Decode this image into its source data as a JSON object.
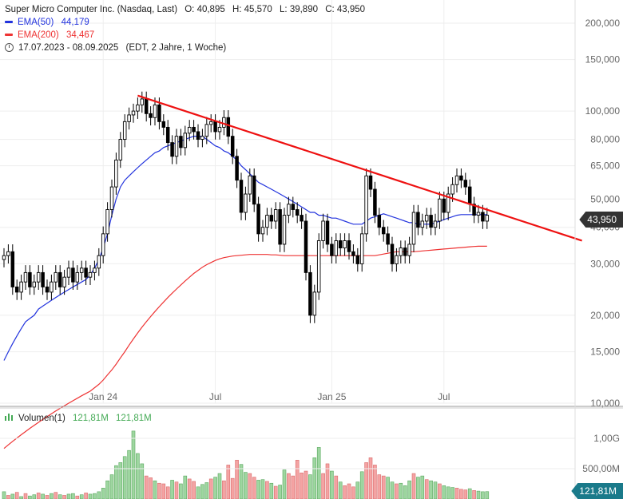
{
  "header": {
    "title_line": "Super Micro Computer Inc. (Nasdaq, Last)",
    "open_label": "O: 40,895",
    "high_label": "H: 45,570",
    "low_label": "L: 39,890",
    "close_label": "C: 43,950",
    "ema50_label": "EMA(50)",
    "ema50_value": "44,179",
    "ema200_label": "EMA(200)",
    "ema200_value": "34,467",
    "range_text": "17.07.2023 - 08.09.2025",
    "range_note": "(EDT, 2 Jahre, 1 Woche)",
    "ema50_color": "#2233dd",
    "ema200_color": "#ee3333"
  },
  "price_badge": "43,950",
  "volume_header": {
    "label": "Volumen(1)",
    "value1": "121,81M",
    "value2": "121,81M",
    "color": "#44aa55"
  },
  "volume_badge": "121,81M",
  "chart_data": {
    "type": "candlestick",
    "scale": "log",
    "ylim": [
      10,
      240
    ],
    "yticks": [
      {
        "value": 200,
        "label": "200,000"
      },
      {
        "value": 150,
        "label": "150,000"
      },
      {
        "value": 100,
        "label": "100,000"
      },
      {
        "value": 80,
        "label": "80,000"
      },
      {
        "value": 65,
        "label": "65,000"
      },
      {
        "value": 50,
        "label": "50,000"
      },
      {
        "value": 40,
        "label": "40,000"
      },
      {
        "value": 30,
        "label": "30,000"
      },
      {
        "value": 20,
        "label": "20,000"
      },
      {
        "value": 15,
        "label": "15,000"
      },
      {
        "value": 10,
        "label": "10,000"
      }
    ],
    "xticks": [
      {
        "index": 23,
        "label": "Jan 24"
      },
      {
        "index": 49,
        "label": "Jul"
      },
      {
        "index": 76,
        "label": "Jan 25"
      },
      {
        "index": 102,
        "label": "Jul"
      }
    ],
    "last_close": 43.95,
    "closes": [
      32,
      33,
      25,
      24,
      26,
      28,
      25,
      26,
      28,
      25,
      24,
      26,
      28,
      25,
      27,
      29,
      26,
      28,
      29,
      27,
      28,
      29,
      32,
      38,
      46,
      55,
      68,
      80,
      92,
      97,
      100,
      105,
      110,
      98,
      95,
      105,
      92,
      88,
      78,
      70,
      82,
      75,
      84,
      88,
      85,
      80,
      82,
      90,
      92,
      85,
      88,
      95,
      82,
      70,
      58,
      45,
      52,
      60,
      48,
      38,
      40,
      44,
      42,
      46,
      35,
      44,
      48,
      46,
      44,
      42,
      28,
      20,
      24,
      36,
      42,
      35,
      32,
      36,
      34,
      36,
      33,
      32,
      30,
      38,
      60,
      54,
      44,
      40,
      38,
      35,
      30,
      32,
      34,
      32,
      35,
      45,
      40,
      42,
      44,
      40,
      42,
      50,
      45,
      52,
      56,
      60,
      58,
      55,
      48,
      44,
      45,
      42,
      44
    ],
    "ema50": [
      14,
      15,
      16,
      17,
      18,
      19,
      19.5,
      20,
      21,
      21.5,
      22,
      22.5,
      23,
      23.5,
      24,
      24.5,
      25,
      25.5,
      26,
      26.5,
      27.5,
      29,
      31,
      34,
      38,
      44,
      50,
      55,
      58,
      60,
      62,
      64,
      66,
      68,
      70,
      72,
      73,
      75,
      76,
      77,
      78,
      79,
      80,
      81,
      82,
      82,
      82,
      80,
      78,
      76,
      75,
      73,
      72,
      70,
      68,
      65,
      63,
      61,
      59,
      57,
      56,
      55,
      54,
      53,
      52,
      51,
      50,
      49,
      48,
      47,
      46,
      45,
      45,
      44,
      44,
      43.5,
      43,
      43,
      42.5,
      42,
      41.5,
      41,
      41,
      41,
      42,
      43,
      43.5,
      44,
      44.5,
      44,
      43.5,
      43,
      42.5,
      42,
      41.5,
      41.5,
      41,
      41,
      41,
      41,
      41.5,
      42,
      42.5,
      43,
      43.5,
      44,
      44.2,
      44.2,
      44.2,
      44.2,
      44.2,
      44.2,
      44.18
    ],
    "ema200": [
      7,
      7.2,
      7.4,
      7.6,
      7.8,
      8,
      8.2,
      8.4,
      8.6,
      8.8,
      9,
      9.2,
      9.4,
      9.6,
      9.8,
      10,
      10.2,
      10.4,
      10.6,
      10.8,
      11,
      11.3,
      11.6,
      12,
      12.5,
      13,
      13.6,
      14.3,
      15,
      15.8,
      16.6,
      17.4,
      18.2,
      19,
      19.8,
      20.6,
      21.4,
      22.2,
      23,
      23.8,
      24.6,
      25.4,
      26.2,
      27,
      27.8,
      28.5,
      29.2,
      29.8,
      30.3,
      30.8,
      31.2,
      31.5,
      31.7,
      31.9,
      32,
      32.1,
      32.2,
      32.3,
      32.3,
      32.3,
      32.3,
      32.3,
      32.2,
      32.2,
      32.1,
      32,
      32,
      32,
      32,
      32,
      32,
      32,
      32,
      32,
      32,
      32,
      32,
      32,
      32,
      32,
      32,
      32,
      32,
      32,
      32,
      32,
      32,
      32.2,
      32.4,
      32.6,
      32.8,
      33,
      33,
      33,
      33,
      33,
      33.1,
      33.2,
      33.3,
      33.4,
      33.5,
      33.6,
      33.7,
      33.8,
      33.9,
      34,
      34.1,
      34.2,
      34.3,
      34.4,
      34.45,
      34.46,
      34.467
    ],
    "trendline": {
      "start_index": 31,
      "start_value": 113,
      "end_index": 134,
      "end_value": 36
    },
    "volume": {
      "scale_ticks": [
        {
          "value": 1000,
          "label": "1,00G"
        },
        {
          "value": 500,
          "label": "500,00M"
        }
      ],
      "values": [
        120,
        60,
        80,
        110,
        40,
        90,
        50,
        70,
        100,
        80,
        60,
        90,
        110,
        70,
        60,
        80,
        90,
        50,
        70,
        100,
        80,
        90,
        120,
        180,
        300,
        400,
        550,
        600,
        700,
        800,
        1120,
        750,
        580,
        380,
        350,
        300,
        260,
        250,
        200,
        310,
        280,
        250,
        380,
        330,
        290,
        200,
        240,
        270,
        330,
        360,
        420,
        300,
        560,
        340,
        640,
        570,
        440,
        420,
        360,
        310,
        320,
        290,
        260,
        210,
        230,
        480,
        420,
        380,
        640,
        430,
        460,
        400,
        680,
        850,
        420,
        580,
        460,
        380,
        280,
        220,
        250,
        200,
        280,
        450,
        600,
        680,
        560,
        400,
        380,
        360,
        280,
        250,
        260,
        220,
        300,
        420,
        360,
        380,
        320,
        300,
        280,
        250,
        220,
        200,
        190,
        180,
        160,
        150,
        170,
        140,
        130,
        120,
        121.81
      ],
      "up": [
        true,
        false,
        true,
        false,
        true,
        false,
        true,
        true,
        false,
        true,
        false,
        true,
        false,
        true,
        false,
        true,
        true,
        false,
        true,
        false,
        true,
        true,
        true,
        true,
        true,
        true,
        true,
        true,
        true,
        true,
        true,
        true,
        true,
        false,
        false,
        true,
        false,
        false,
        false,
        true,
        false,
        true,
        true,
        false,
        false,
        true,
        true,
        true,
        false,
        true,
        true,
        false,
        false,
        false,
        false,
        true,
        true,
        false,
        false,
        true,
        true,
        false,
        true,
        false,
        true,
        true,
        false,
        false,
        false,
        false,
        false,
        true,
        true,
        true,
        false,
        false,
        true,
        false,
        true,
        false,
        false,
        false,
        true,
        true,
        false,
        false,
        false,
        false,
        false,
        true,
        true,
        false,
        true,
        true,
        true,
        false,
        true,
        true,
        false,
        true,
        true,
        false,
        true,
        true,
        true,
        false,
        false,
        false,
        true,
        false,
        true,
        true,
        true
      ]
    }
  }
}
